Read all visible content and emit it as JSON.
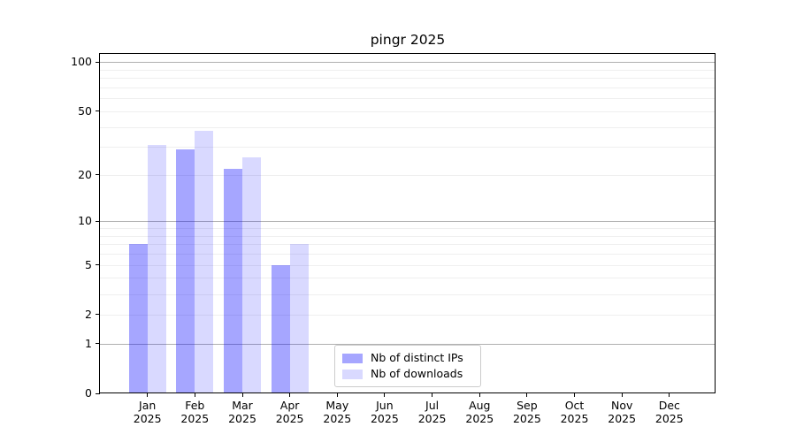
{
  "chart_data": {
    "type": "bar",
    "title": "pingr 2025",
    "categories": [
      "Jan",
      "Feb",
      "Mar",
      "Apr",
      "May",
      "Jun",
      "Jul",
      "Aug",
      "Sep",
      "Oct",
      "Nov",
      "Dec"
    ],
    "xtick_year_line": "2025",
    "series": [
      {
        "name": "Nb of distinct IPs",
        "color": "rgba(0,0,255,0.35)",
        "values": [
          7,
          29,
          22,
          5,
          0,
          0,
          0,
          0,
          0,
          0,
          0,
          0
        ]
      },
      {
        "name": "Nb of downloads",
        "color": "rgba(0,0,255,0.15)",
        "values": [
          31,
          38,
          26,
          7,
          0,
          0,
          0,
          0,
          0,
          0,
          0,
          0
        ]
      }
    ],
    "xlabel": "",
    "ylabel": "",
    "yscale": "log1p",
    "ylim": [
      0,
      112
    ],
    "ytick_values": [
      0,
      1,
      2,
      5,
      10,
      20,
      50,
      100
    ],
    "ytick_labels": [
      "0",
      "1",
      "2",
      "5",
      "10",
      "20",
      "50",
      "100"
    ],
    "major_gridline_values": [
      1,
      10,
      100
    ],
    "minor_gridline_values": [
      2,
      3,
      4,
      5,
      6,
      7,
      8,
      9,
      20,
      30,
      40,
      50,
      60,
      70,
      80,
      90
    ],
    "grid": true,
    "legend_position": "lower center",
    "legend_labels": [
      "Nb of distinct IPs",
      "Nb of downloads"
    ]
  }
}
